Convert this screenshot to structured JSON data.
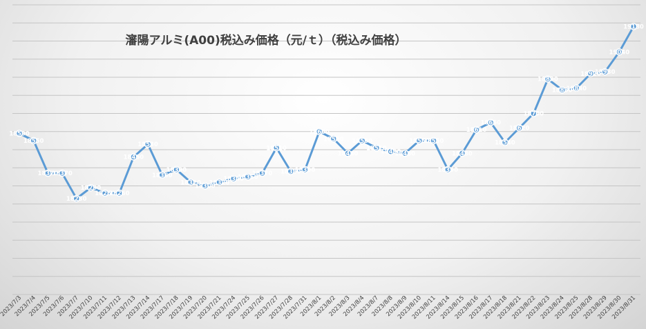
{
  "chart_data": {
    "type": "line",
    "title": "瀋陽アルミ(A00)税込み価格（元/ｔ）（税込み価格）",
    "x": [
      "2023/7/3",
      "2023/7/4",
      "2023/7/5",
      "2023/7/6",
      "2023/7/7",
      "2023/7/10",
      "2023/7/11",
      "2023/7/12",
      "2023/7/13",
      "2023/7/14",
      "2023/7/17",
      "2023/7/18",
      "2023/7/19",
      "2023/7/20",
      "2023/7/21",
      "2023/7/24",
      "2023/7/25",
      "2023/7/26",
      "2023/7/27",
      "2023/7/28",
      "2023/7/31",
      "2023/8/1",
      "2023/8/2",
      "2023/8/3",
      "2023/8/4",
      "2023/8/7",
      "2023/8/8",
      "2023/8/9",
      "2023/8/10",
      "2023/8/11",
      "2023/8/14",
      "2023/8/15",
      "2023/8/16",
      "2023/8/17",
      "2023/8/18",
      "2023/8/21",
      "2023/8/22",
      "2023/8/23",
      "2023/8/24",
      "2023/8/25",
      "2023/8/28",
      "2023/8/29",
      "2023/8/30",
      "2023/8/31"
    ],
    "series": [
      {
        "values": [
          18590,
          18550,
          18370,
          18370,
          18230,
          18290,
          18260,
          18260,
          18460,
          18530,
          18360,
          18390,
          18320,
          18300,
          18320,
          18340,
          18350,
          18370,
          18510,
          18380,
          18390,
          18600,
          18560,
          18480,
          18550,
          18510,
          18490,
          18480,
          18550,
          18550,
          18390,
          18480,
          18610,
          18650,
          18540,
          18620,
          18700,
          18890,
          18830,
          18840,
          18920,
          18930,
          19040,
          19180
        ]
      }
    ],
    "ylim": [
      17700,
      19300
    ],
    "grid": true,
    "legend": "none",
    "colors": {
      "line": "#5b9bd5",
      "grid": "#c4c4c4",
      "text": "#404040"
    }
  }
}
